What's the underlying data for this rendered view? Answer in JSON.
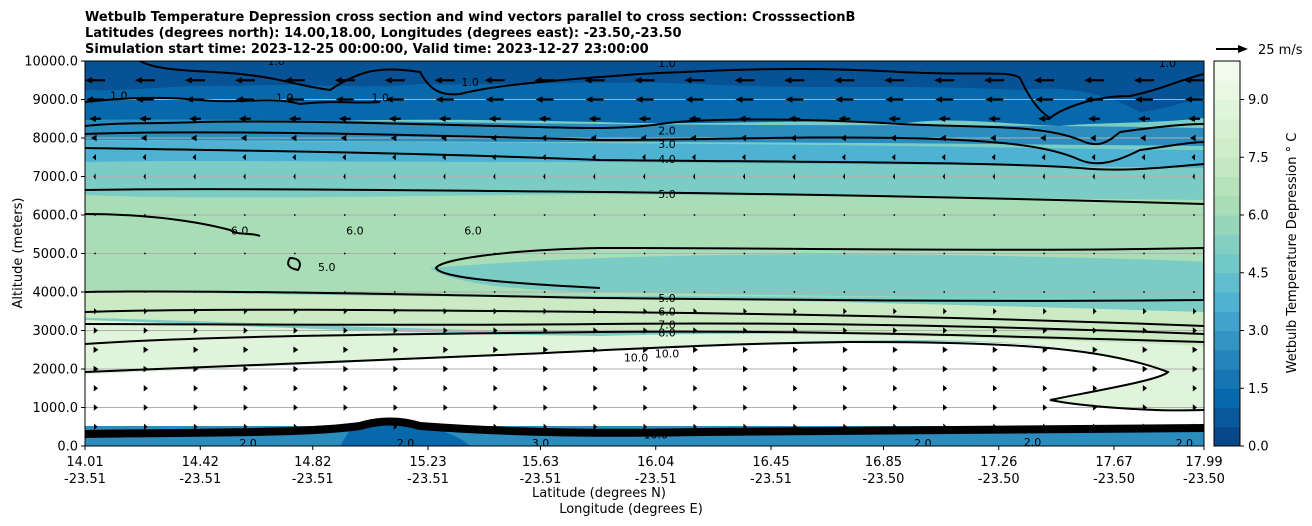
{
  "chart_data": {
    "type": "contourf",
    "title_lines": [
      "Wetbulb Temperature Depression cross section and wind vectors parallel to cross section: CrosssectionB",
      "Latitudes (degrees north): 14.00,18.00, Longitudes (degrees east): -23.50,-23.50",
      "Simulation start time: 2023-12-25 00:00:00, Valid time: 2023-12-27 23:00:00"
    ],
    "xlabel_lines": [
      "Latitude (degrees N)",
      "Longitude (degrees E)"
    ],
    "ylabel": "Altitude (meters)",
    "colorbar_label": "Wetbulb Temperature Depression $^\\circ$ C",
    "colorbar_label_text": "Wetbulb Temperature Depression ° C",
    "x_range": [
      14.01,
      17.99
    ],
    "y_range": [
      0,
      10000
    ],
    "x_ticks": [
      {
        "lat": "14.01",
        "lon": "-23.51",
        "value": 14.01
      },
      {
        "lat": "14.42",
        "lon": "-23.51",
        "value": 14.42
      },
      {
        "lat": "14.82",
        "lon": "-23.51",
        "value": 14.82
      },
      {
        "lat": "15.23",
        "lon": "-23.51",
        "value": 15.23
      },
      {
        "lat": "15.63",
        "lon": "-23.51",
        "value": 15.63
      },
      {
        "lat": "16.04",
        "lon": "-23.51",
        "value": 16.04
      },
      {
        "lat": "16.45",
        "lon": "-23.51",
        "value": 16.45
      },
      {
        "lat": "16.85",
        "lon": "-23.50",
        "value": 16.85
      },
      {
        "lat": "17.26",
        "lon": "-23.50",
        "value": 17.26
      },
      {
        "lat": "17.67",
        "lon": "-23.50",
        "value": 17.67
      },
      {
        "lat": "17.99",
        "lon": "-23.50",
        "value": 17.99
      }
    ],
    "y_ticks": [
      {
        "label": "0.0",
        "value": 0
      },
      {
        "label": "1000.0",
        "value": 1000
      },
      {
        "label": "2000.0",
        "value": 2000
      },
      {
        "label": "3000.0",
        "value": 3000
      },
      {
        "label": "4000.0",
        "value": 4000
      },
      {
        "label": "5000.0",
        "value": 5000
      },
      {
        "label": "6000.0",
        "value": 6000
      },
      {
        "label": "7000.0",
        "value": 7000
      },
      {
        "label": "8000.0",
        "value": 8000
      },
      {
        "label": "9000.0",
        "value": 9000
      },
      {
        "label": "10000.0",
        "value": 10000
      }
    ],
    "colorbar": {
      "min": 0,
      "max": 10,
      "ticks": [
        {
          "label": "0.0",
          "value": 0
        },
        {
          "label": "1.5",
          "value": 1.5
        },
        {
          "label": "3.0",
          "value": 3.0
        },
        {
          "label": "4.5",
          "value": 4.5
        },
        {
          "label": "6.0",
          "value": 6.0
        },
        {
          "label": "7.5",
          "value": 7.5
        },
        {
          "label": "9.0",
          "value": 9.0
        }
      ],
      "colors": [
        "#084081",
        "#0868ac",
        "#2b8cbe",
        "#4eb3d3",
        "#7bccc4",
        "#a8ddb5",
        "#ccebc5",
        "#e0f3db",
        "#f7fcf0"
      ]
    },
    "wind_key": {
      "label": "25 m/s",
      "speed": 25
    },
    "wind_rows": [
      {
        "alt": 9500,
        "dir": -1,
        "len": 20
      },
      {
        "alt": 9000,
        "dir": -1,
        "len": 18
      },
      {
        "alt": 8500,
        "dir": -1,
        "len": 12
      },
      {
        "alt": 8000,
        "dir": -1,
        "len": 8
      },
      {
        "alt": 7500,
        "dir": -1,
        "len": 5
      },
      {
        "alt": 7000,
        "dir": -1,
        "len": 3
      },
      {
        "alt": 6000,
        "dir": 0,
        "len": 1
      },
      {
        "alt": 5000,
        "dir": 0,
        "len": 1
      },
      {
        "alt": 4000,
        "dir": 0,
        "len": 1
      },
      {
        "alt": 3500,
        "dir": 1,
        "len": 5
      },
      {
        "alt": 3000,
        "dir": 1,
        "len": 6
      },
      {
        "alt": 2500,
        "dir": 1,
        "len": 7
      },
      {
        "alt": 2000,
        "dir": 1,
        "len": 7
      },
      {
        "alt": 1500,
        "dir": 1,
        "len": 6
      },
      {
        "alt": 1000,
        "dir": 1,
        "len": 6
      },
      {
        "alt": 500,
        "dir": 1,
        "len": 5
      }
    ],
    "contour_labels": [
      {
        "text": "1.0",
        "lat": 16.08,
        "alt": 9950
      },
      {
        "text": "1.0",
        "lat": 14.13,
        "alt": 9100
      },
      {
        "text": "1.0",
        "lat": 14.69,
        "alt": 10000
      },
      {
        "text": "1.0",
        "lat": 14.72,
        "alt": 9050
      },
      {
        "text": "1.0",
        "lat": 15.06,
        "alt": 9050
      },
      {
        "text": "1.0",
        "lat": 15.38,
        "alt": 9450
      },
      {
        "text": "1.0",
        "lat": 17.86,
        "alt": 9950
      },
      {
        "text": "2.0",
        "lat": 16.08,
        "alt": 8200
      },
      {
        "text": "3.0",
        "lat": 16.08,
        "alt": 7850
      },
      {
        "text": "4.0",
        "lat": 16.08,
        "alt": 7450
      },
      {
        "text": "5.0",
        "lat": 16.08,
        "alt": 6550
      },
      {
        "text": "6.0",
        "lat": 14.56,
        "alt": 5600
      },
      {
        "text": "6.0",
        "lat": 14.97,
        "alt": 5600
      },
      {
        "text": "6.0",
        "lat": 15.39,
        "alt": 5600
      },
      {
        "text": "5.0",
        "lat": 14.87,
        "alt": 4650
      },
      {
        "text": "5.0",
        "lat": 16.08,
        "alt": 3850
      },
      {
        "text": "6.0",
        "lat": 16.08,
        "alt": 3500
      },
      {
        "text": "7.0",
        "lat": 16.08,
        "alt": 3150
      },
      {
        "text": "8.0",
        "lat": 16.08,
        "alt": 2950
      },
      {
        "text": "10.0",
        "lat": 15.97,
        "alt": 2300
      },
      {
        "text": "10.0",
        "lat": 16.08,
        "alt": 2400
      },
      {
        "text": "10.0",
        "lat": 16.04,
        "alt": 300
      },
      {
        "text": "2.0",
        "lat": 16.99,
        "alt": 80
      },
      {
        "text": "2.0",
        "lat": 17.38,
        "alt": 100
      },
      {
        "text": "2.0",
        "lat": 17.92,
        "alt": 80
      },
      {
        "text": "2.0",
        "lat": 14.59,
        "alt": 80
      },
      {
        "text": "2.0",
        "lat": 15.15,
        "alt": 80
      },
      {
        "text": "3.0",
        "lat": 15.63,
        "alt": 80
      }
    ]
  }
}
